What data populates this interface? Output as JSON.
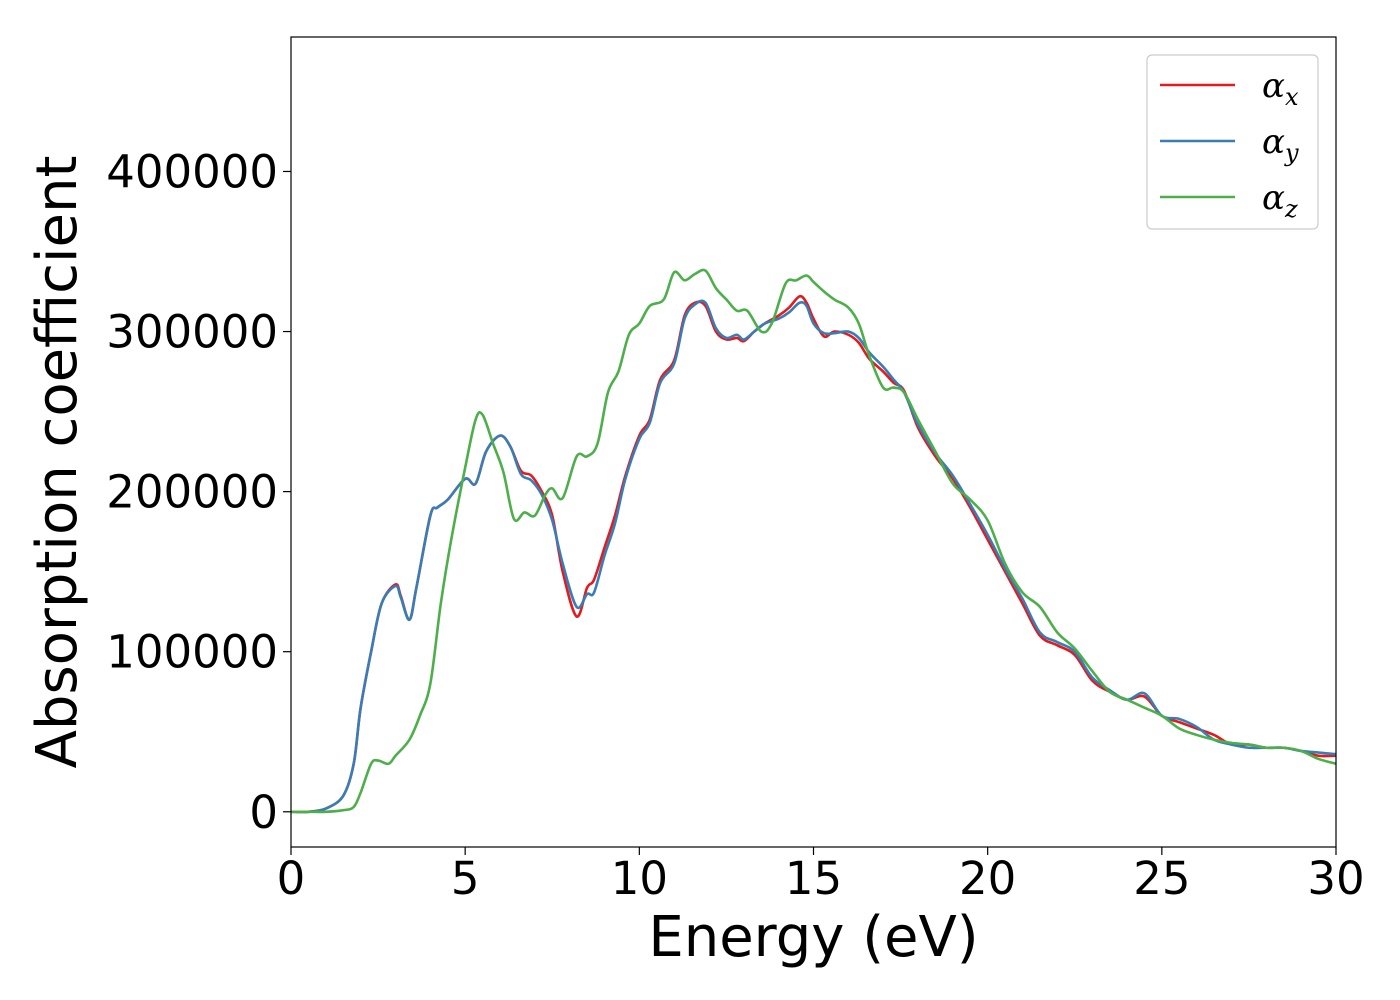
{
  "chart_data": {
    "type": "line",
    "xlabel": "Energy (eV)",
    "ylabel": "Absorption coefficient",
    "xlim": [
      0,
      30
    ],
    "ylim": [
      -22000,
      484000
    ],
    "xticks": [
      0,
      5,
      10,
      15,
      20,
      25,
      30
    ],
    "xtick_labels": [
      "0",
      "5",
      "10",
      "15",
      "20",
      "25",
      "30"
    ],
    "yticks": [
      0,
      100000,
      200000,
      300000,
      400000
    ],
    "ytick_labels": [
      "0",
      "100000",
      "200000",
      "300000",
      "400000"
    ],
    "grid": false,
    "legend_position": "top-right",
    "series": [
      {
        "name": "α",
        "subscript": "x",
        "color": "#e41a1c",
        "x": [
          0,
          0.5,
          1.0,
          1.5,
          1.8,
          2.0,
          2.3,
          2.6,
          3.0,
          3.15,
          3.4,
          3.6,
          4.0,
          4.2,
          4.5,
          5.0,
          5.3,
          5.6,
          6.0,
          6.3,
          6.6,
          6.9,
          7.2,
          7.5,
          7.8,
          8.2,
          8.5,
          8.7,
          9.0,
          9.3,
          9.6,
          10.0,
          10.3,
          10.6,
          11.0,
          11.3,
          11.6,
          11.9,
          12.2,
          12.5,
          12.8,
          13.0,
          13.3,
          13.6,
          14.0,
          14.3,
          14.6,
          14.8,
          15.0,
          15.3,
          15.6,
          16.0,
          16.3,
          16.6,
          17.0,
          17.3,
          17.6,
          18.0,
          18.5,
          19.0,
          19.5,
          20.0,
          20.5,
          21.0,
          21.5,
          22.0,
          22.5,
          23.0,
          23.5,
          24.0,
          24.5,
          25.0,
          25.5,
          26.0,
          26.5,
          27.0,
          27.5,
          28.0,
          28.5,
          29.0,
          29.5,
          30.0
        ],
        "y": [
          0,
          0,
          2000,
          10000,
          30000,
          65000,
          100000,
          130000,
          142000,
          135000,
          120000,
          140000,
          185000,
          190000,
          195000,
          208000,
          205000,
          225000,
          235000,
          228000,
          213000,
          210000,
          200000,
          185000,
          150000,
          122000,
          140000,
          145000,
          165000,
          185000,
          210000,
          235000,
          245000,
          270000,
          282000,
          310000,
          318000,
          316000,
          300000,
          295000,
          296000,
          294000,
          300000,
          305000,
          310000,
          315000,
          322000,
          318000,
          308000,
          297000,
          300000,
          298000,
          293000,
          283000,
          275000,
          268000,
          263000,
          240000,
          222000,
          208000,
          190000,
          170000,
          150000,
          130000,
          110000,
          104000,
          98000,
          82000,
          75000,
          70000,
          72000,
          60000,
          56000,
          52000,
          48000,
          42000,
          42000,
          40000,
          40000,
          38000,
          35000,
          35000
        ]
      },
      {
        "name": "α",
        "subscript": "y",
        "color": "#377eb8",
        "x": [
          0,
          0.5,
          1.0,
          1.5,
          1.8,
          2.0,
          2.3,
          2.6,
          3.0,
          3.15,
          3.4,
          3.6,
          4.0,
          4.2,
          4.5,
          5.0,
          5.3,
          5.6,
          6.0,
          6.3,
          6.6,
          6.9,
          7.2,
          7.5,
          7.8,
          8.2,
          8.5,
          8.7,
          9.0,
          9.3,
          9.6,
          10.0,
          10.3,
          10.6,
          11.0,
          11.3,
          11.6,
          11.9,
          12.2,
          12.5,
          12.8,
          13.0,
          13.3,
          13.6,
          14.0,
          14.3,
          14.6,
          14.8,
          15.0,
          15.3,
          15.6,
          16.0,
          16.3,
          16.6,
          17.0,
          17.3,
          17.6,
          18.0,
          18.5,
          19.0,
          19.5,
          20.0,
          20.5,
          21.0,
          21.5,
          22.0,
          22.5,
          23.0,
          23.5,
          24.0,
          24.5,
          25.0,
          25.5,
          26.0,
          26.5,
          27.0,
          27.5,
          28.0,
          28.5,
          29.0,
          29.5,
          30.0
        ],
        "y": [
          0,
          0,
          2000,
          10000,
          30000,
          65000,
          100000,
          130000,
          141000,
          134000,
          120000,
          140000,
          185000,
          190000,
          195000,
          208000,
          205000,
          225000,
          235000,
          228000,
          211000,
          207000,
          198000,
          182000,
          155000,
          128000,
          136000,
          137000,
          160000,
          180000,
          208000,
          233000,
          243000,
          268000,
          280000,
          308000,
          317000,
          318000,
          302000,
          296000,
          298000,
          295000,
          300000,
          305000,
          308000,
          312000,
          318000,
          316000,
          305000,
          299000,
          299000,
          300000,
          296000,
          287000,
          278000,
          270000,
          262000,
          242000,
          224000,
          210000,
          192000,
          173000,
          152000,
          133000,
          112000,
          106000,
          100000,
          84000,
          76000,
          70000,
          74000,
          60000,
          58000,
          53000,
          45000,
          42000,
          40000,
          40000,
          40000,
          38000,
          37000,
          36000
        ]
      },
      {
        "name": "α",
        "subscript": "z",
        "color": "#4daf4a",
        "x": [
          0,
          0.5,
          1.0,
          1.5,
          1.8,
          2.0,
          2.3,
          2.5,
          2.8,
          3.0,
          3.4,
          3.7,
          4.0,
          4.3,
          4.6,
          5.0,
          5.3,
          5.5,
          5.8,
          6.1,
          6.4,
          6.7,
          7.0,
          7.3,
          7.5,
          7.8,
          8.2,
          8.5,
          8.8,
          9.1,
          9.4,
          9.7,
          10.0,
          10.3,
          10.7,
          11.0,
          11.3,
          11.6,
          11.9,
          12.2,
          12.5,
          12.8,
          13.1,
          13.5,
          13.8,
          14.2,
          14.5,
          14.8,
          15.0,
          15.3,
          15.6,
          16.0,
          16.3,
          16.6,
          17.0,
          17.3,
          17.6,
          18.0,
          18.5,
          19.0,
          19.5,
          20.0,
          20.5,
          21.0,
          21.5,
          22.0,
          22.5,
          23.0,
          23.5,
          24.0,
          24.5,
          25.0,
          25.5,
          26.0,
          26.5,
          27.0,
          27.5,
          28.0,
          28.5,
          29.0,
          29.5,
          30.0
        ],
        "y": [
          0,
          0,
          0,
          1000,
          3000,
          12000,
          30000,
          32000,
          30000,
          35000,
          45000,
          60000,
          80000,
          130000,
          170000,
          215000,
          245000,
          248000,
          230000,
          212000,
          183000,
          187000,
          185000,
          198000,
          202000,
          196000,
          222000,
          222000,
          230000,
          262000,
          275000,
          298000,
          305000,
          316000,
          320000,
          337000,
          332000,
          336000,
          338000,
          327000,
          320000,
          313000,
          313000,
          300000,
          305000,
          330000,
          332000,
          335000,
          331000,
          325000,
          320000,
          315000,
          305000,
          285000,
          265000,
          265000,
          262000,
          245000,
          225000,
          205000,
          195000,
          182000,
          155000,
          137000,
          128000,
          112000,
          102000,
          88000,
          75000,
          70000,
          65000,
          60000,
          52000,
          48000,
          45000,
          43000,
          42000,
          40000,
          40000,
          38000,
          33000,
          30000
        ]
      }
    ]
  }
}
